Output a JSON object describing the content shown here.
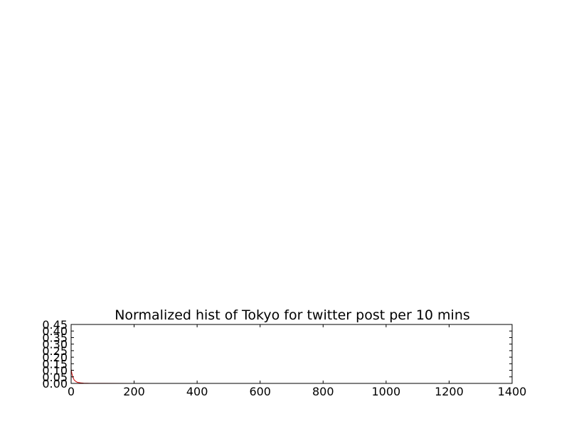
{
  "chart_data": {
    "type": "line",
    "title": "Normalized hist of Tokyo for twitter post per 10 mins",
    "xlabel": "",
    "ylabel": "",
    "xlim": [
      0,
      1400
    ],
    "ylim": [
      0,
      0.45
    ],
    "x_ticks": [
      0,
      200,
      400,
      600,
      800,
      1000,
      1200,
      1400
    ],
    "y_ticks": [
      0.0,
      0.05,
      0.1,
      0.15,
      0.2,
      0.25,
      0.3,
      0.35,
      0.4,
      0.45
    ],
    "x_tick_labels": [
      "0",
      "200",
      "400",
      "600",
      "800",
      "1000",
      "1200",
      "1400"
    ],
    "y_tick_labels": [
      "0.00",
      "0.05",
      "0.10",
      "0.15",
      "0.20",
      "0.25",
      "0.30",
      "0.35",
      "0.40",
      "0.45"
    ],
    "grid": false,
    "series": [
      {
        "color": "#cc0000",
        "x": [
          0,
          2,
          4,
          6,
          8,
          10,
          15,
          20,
          30,
          40,
          60,
          100,
          200,
          400,
          600,
          800,
          1000,
          1200,
          1380
        ],
        "y": [
          0.11,
          0.08,
          0.06,
          0.045,
          0.035,
          0.025,
          0.015,
          0.008,
          0.004,
          0.002,
          0.001,
          0.0005,
          0.0003,
          0.0002,
          0.0001,
          0.0001,
          0.0001,
          0.0001,
          0.0001
        ]
      }
    ]
  }
}
